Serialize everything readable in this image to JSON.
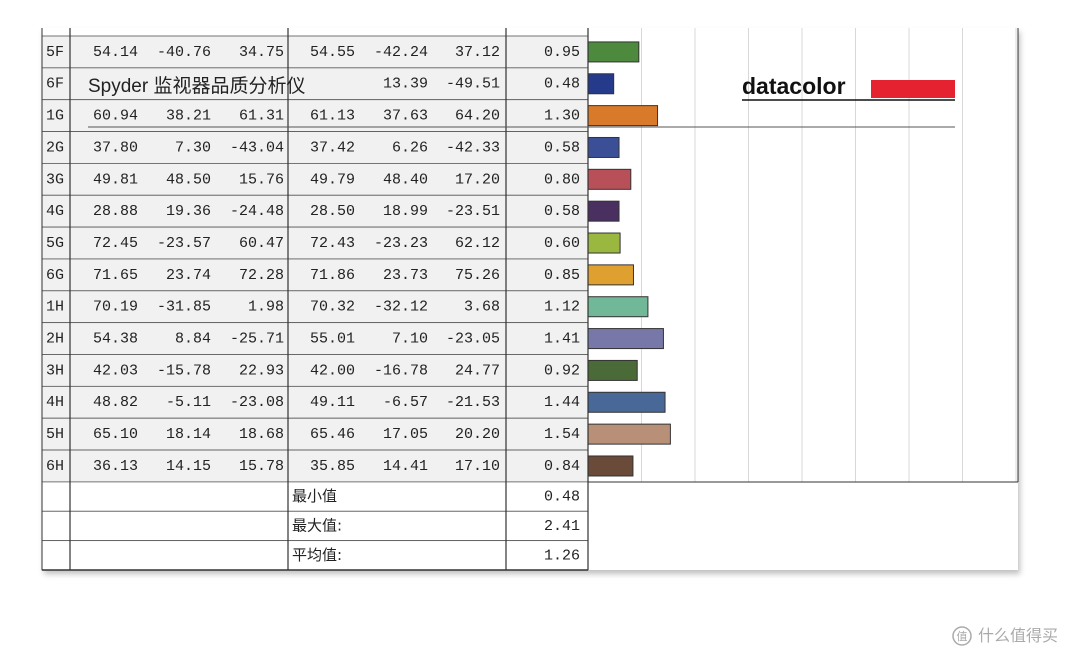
{
  "table": {
    "rows": [
      {
        "cells": [
          "5F",
          "54.14",
          "-40.76",
          "34.75",
          "54.55",
          "-42.24",
          "37.12",
          "0.95"
        ],
        "color": "#4e8a3e"
      },
      {
        "cells": [
          "6F",
          null,
          null,
          null,
          null,
          "13.39",
          "-49.51",
          "0.48"
        ],
        "color": "#263a8c"
      },
      {
        "cells": [
          "1G",
          "60.94",
          "38.21",
          "61.31",
          "61.13",
          "37.63",
          "64.20",
          "1.30"
        ],
        "color": "#d87a2a"
      },
      {
        "cells": [
          "2G",
          "37.80",
          "7.30",
          "-43.04",
          "37.42",
          "6.26",
          "-42.33",
          "0.58"
        ],
        "color": "#3b4f96"
      },
      {
        "cells": [
          "3G",
          "49.81",
          "48.50",
          "15.76",
          "49.79",
          "48.40",
          "17.20",
          "0.80"
        ],
        "color": "#b8505a"
      },
      {
        "cells": [
          "4G",
          "28.88",
          "19.36",
          "-24.48",
          "28.50",
          "18.99",
          "-23.51",
          "0.58"
        ],
        "color": "#4a3060"
      },
      {
        "cells": [
          "5G",
          "72.45",
          "-23.57",
          "60.47",
          "72.43",
          "-23.23",
          "62.12",
          "0.60"
        ],
        "color": "#9ab840"
      },
      {
        "cells": [
          "6G",
          "71.65",
          "23.74",
          "72.28",
          "71.86",
          "23.73",
          "75.26",
          "0.85"
        ],
        "color": "#e0a030"
      },
      {
        "cells": [
          "1H",
          "70.19",
          "-31.85",
          "1.98",
          "70.32",
          "-32.12",
          "3.68",
          "1.12"
        ],
        "color": "#70b898"
      },
      {
        "cells": [
          "2H",
          "54.38",
          "8.84",
          "-25.71",
          "55.01",
          "7.10",
          "-23.05",
          "1.41"
        ],
        "color": "#7878a8"
      },
      {
        "cells": [
          "3H",
          "42.03",
          "-15.78",
          "22.93",
          "42.00",
          "-16.78",
          "24.77",
          "0.92"
        ],
        "color": "#4a6a38"
      },
      {
        "cells": [
          "4H",
          "48.82",
          "-5.11",
          "-23.08",
          "49.11",
          "-6.57",
          "-21.53",
          "1.44"
        ],
        "color": "#486898"
      },
      {
        "cells": [
          "5H",
          "65.10",
          "18.14",
          "18.68",
          "65.46",
          "17.05",
          "20.20",
          "1.54"
        ],
        "color": "#b89078"
      },
      {
        "cells": [
          "6H",
          "36.13",
          "14.15",
          "15.78",
          "35.85",
          "14.41",
          "17.10",
          "0.84"
        ],
        "color": "#6a4a38"
      }
    ],
    "summary": [
      {
        "label": "最小值",
        "value": "0.48"
      },
      {
        "label": "最大值:",
        "value": "2.41"
      },
      {
        "label": "平均值:",
        "value": "1.26"
      }
    ]
  },
  "overlay": {
    "title": "Spyder 监视器品质分析仪",
    "logo": "datacolor"
  },
  "watermark": {
    "icon": "值",
    "text": "什么值得买"
  }
}
